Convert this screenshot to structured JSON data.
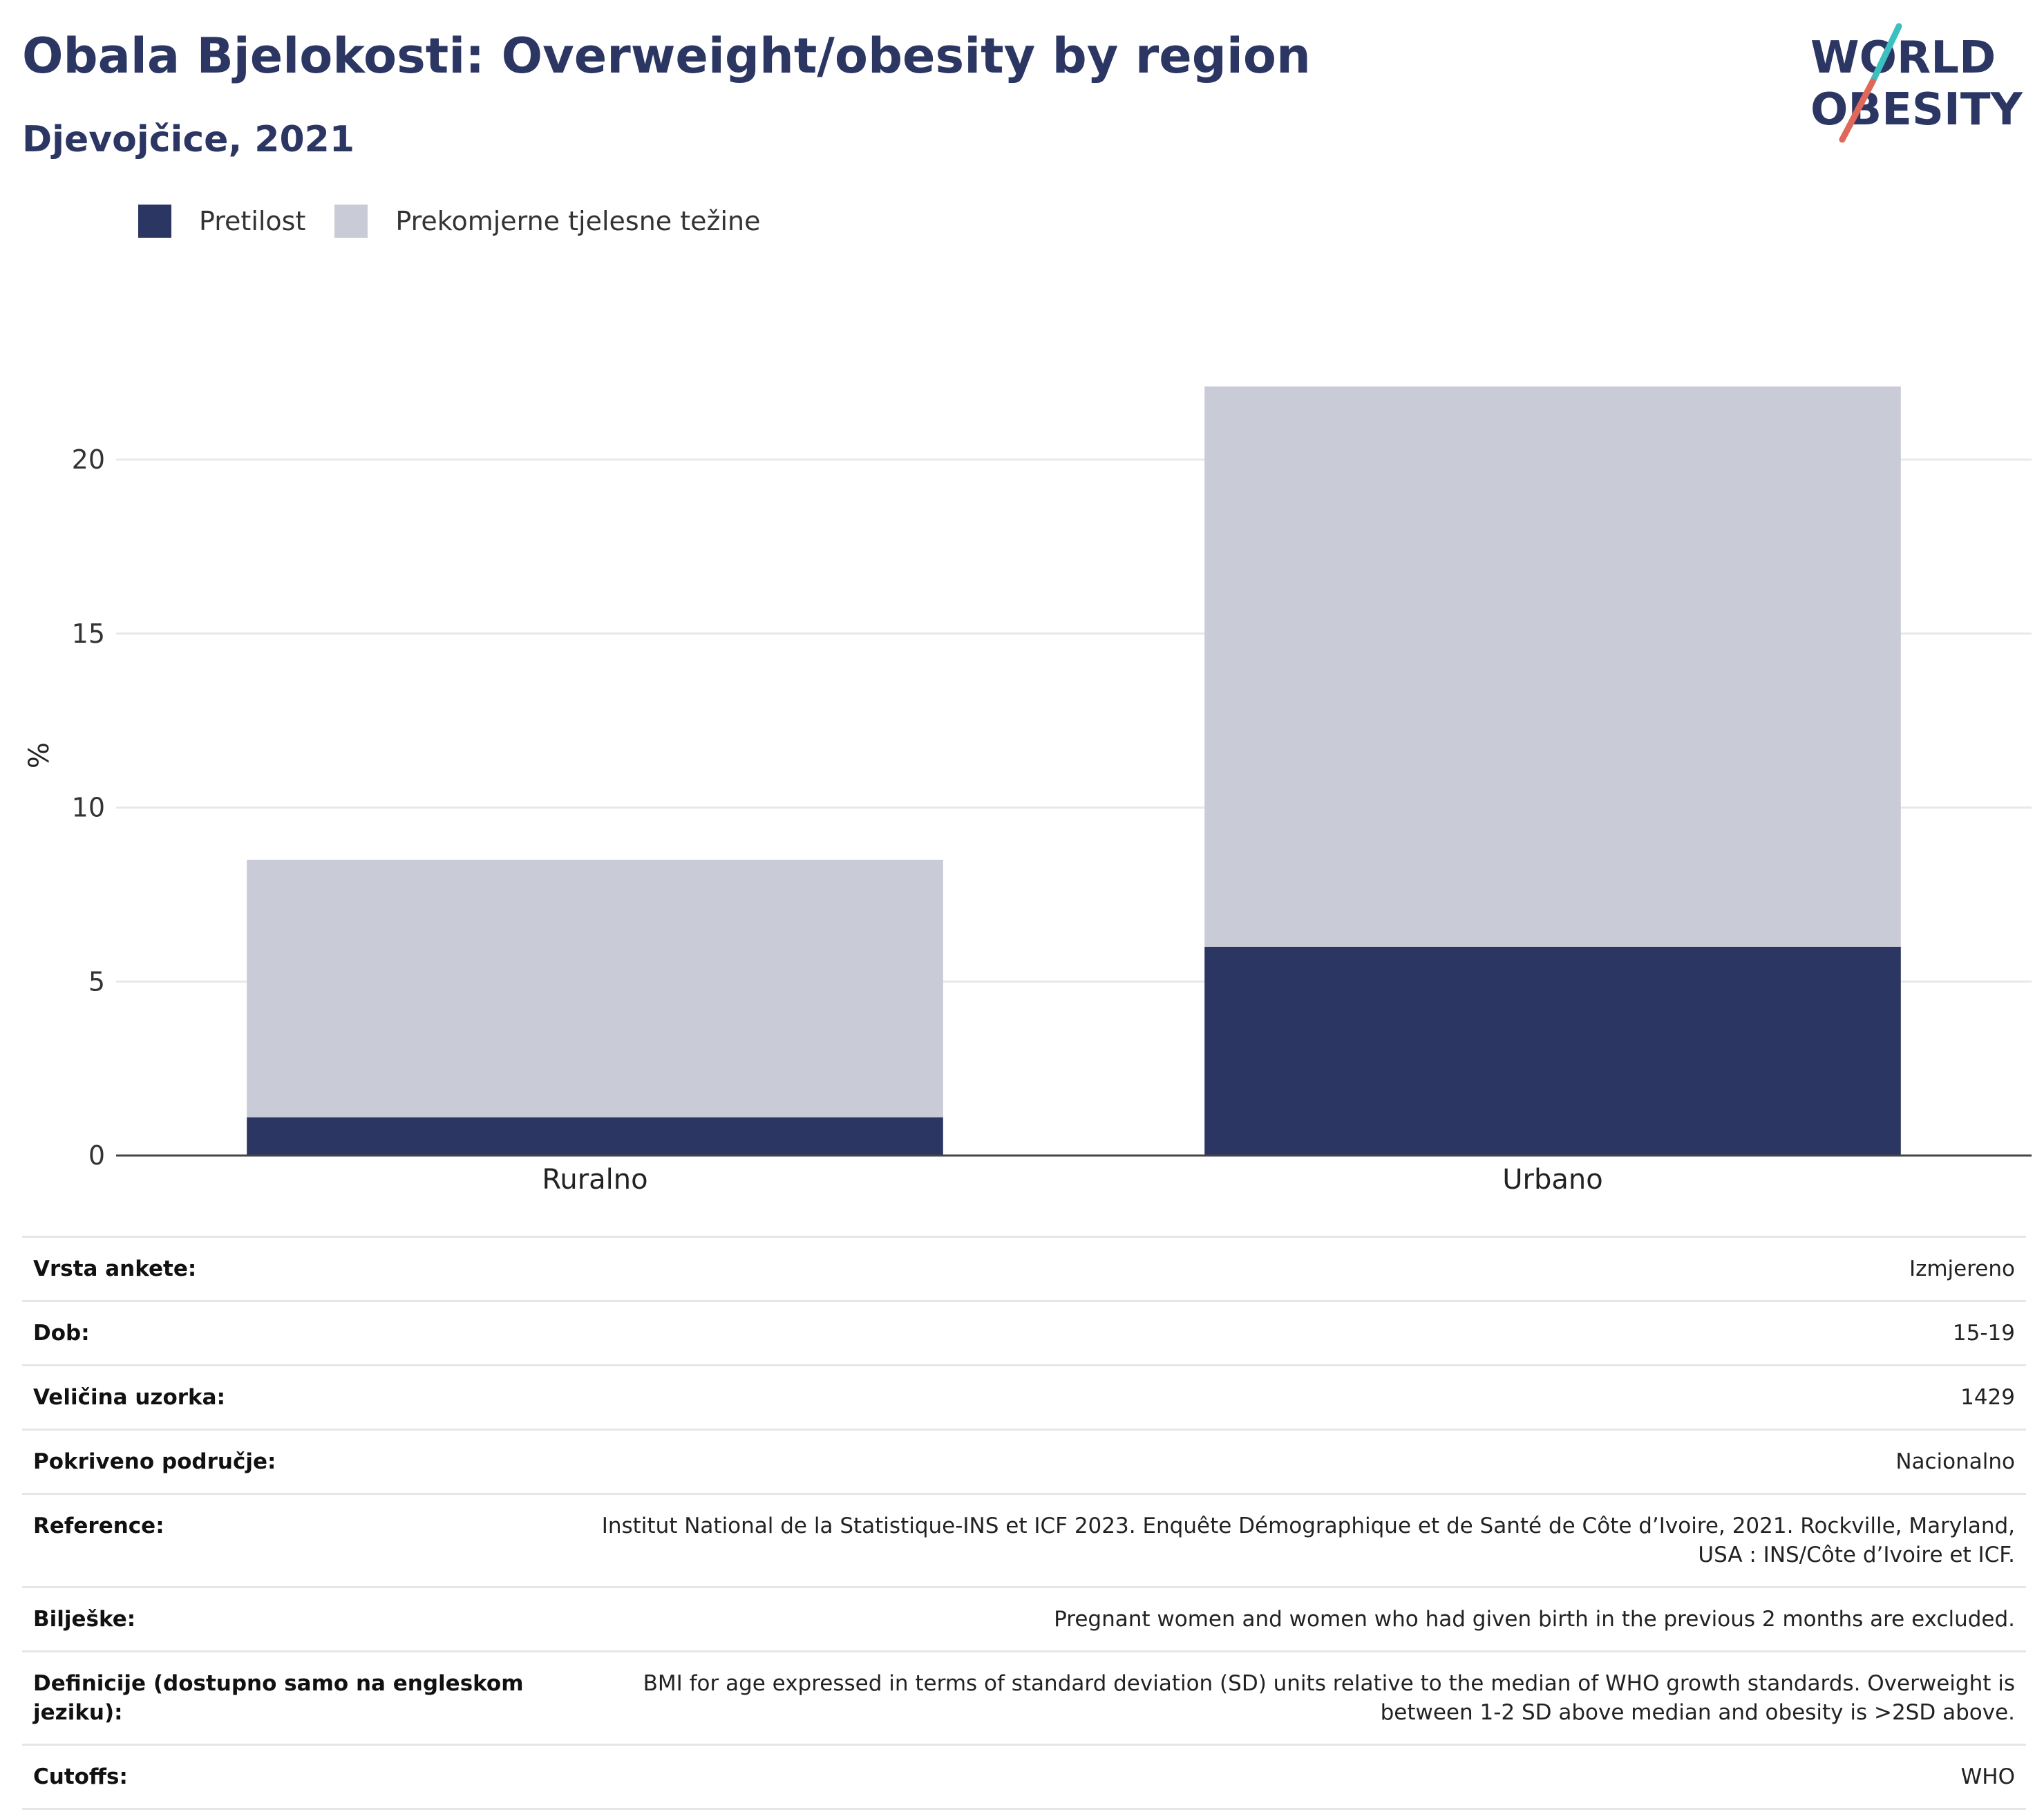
{
  "header": {
    "title": "Obala Bjelokosti: Overweight/obesity by region",
    "subtitle": "Djevojčice, 2021"
  },
  "logo": {
    "line1": "WORLD",
    "line2": "OBESITY"
  },
  "colors": {
    "obesity": "#2b3663",
    "overweight": "#c9cbd6",
    "accent_teal": "#3bbfbf",
    "accent_red": "#e0685a"
  },
  "chart_data": {
    "type": "bar",
    "stacked": true,
    "categories": [
      "Ruralno",
      "Urbano"
    ],
    "series": [
      {
        "name": "Pretilost",
        "values": [
          1.1,
          6.0
        ]
      },
      {
        "name": "Prekomjerne tjelesne težine",
        "values": [
          7.4,
          16.1
        ]
      }
    ],
    "ylabel": "%",
    "ylim": [
      0,
      23
    ],
    "yticks": [
      0,
      5,
      10,
      15,
      20
    ],
    "grid": true,
    "legend_position": "top-left"
  },
  "metadata": [
    {
      "key": "Vrsta ankete:",
      "value": "Izmjereno"
    },
    {
      "key": "Dob:",
      "value": "15-19"
    },
    {
      "key": "Veličina uzorka:",
      "value": "1429"
    },
    {
      "key": "Pokriveno područje:",
      "value": "Nacionalno"
    },
    {
      "key": "Reference:",
      "value": "Institut National de la Statistique-INS et ICF 2023. Enquête Démographique et de Santé de Côte d’Ivoire, 2021. Rockville, Maryland, USA : INS/Côte d’Ivoire et ICF."
    },
    {
      "key": "Bilješke:",
      "value": "Pregnant women and women who had given birth in the previous 2 months are excluded."
    },
    {
      "key": "Definicije (dostupno samo na engleskom jeziku):",
      "value": "BMI for age expressed in terms of standard deviation (SD) units relative to the median of WHO growth standards. Overweight is between 1-2 SD above median and obesity is >2SD above."
    },
    {
      "key": "Cutoffs:",
      "value": "WHO"
    }
  ]
}
